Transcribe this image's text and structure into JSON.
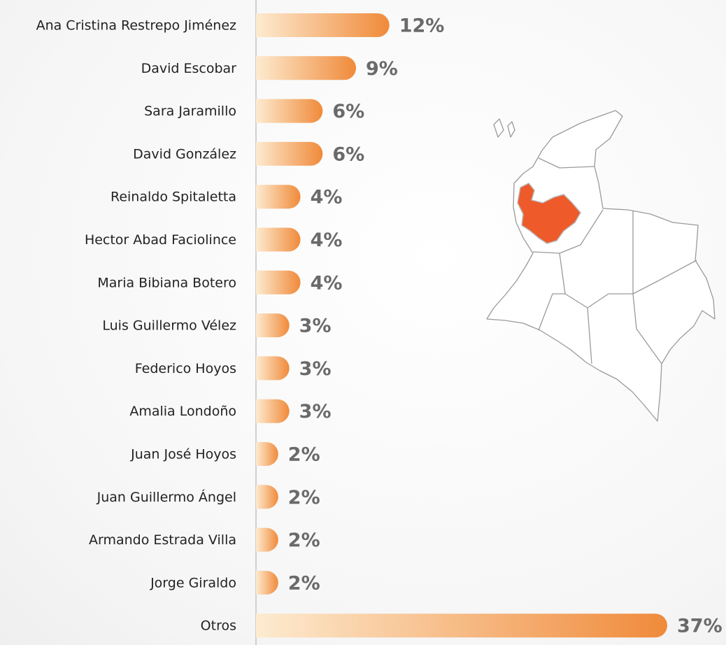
{
  "chart_data": {
    "type": "bar",
    "orientation": "horizontal",
    "categories": [
      "Ana Cristina Restrepo Jiménez",
      "David Escobar",
      "Sara Jaramillo",
      "David González",
      "Reinaldo Spitaletta",
      "Hector Abad Faciolince",
      "Maria Bibiana Botero",
      "Luis Guillermo Vélez",
      "Federico Hoyos",
      "Amalia Londoño",
      "Juan José Hoyos",
      "Juan Guillermo Ángel",
      "Armando Estrada Villa",
      "Jorge Giraldo",
      "Otros"
    ],
    "values": [
      12,
      9,
      6,
      6,
      4,
      4,
      4,
      3,
      3,
      3,
      2,
      2,
      2,
      2,
      37
    ],
    "value_labels": [
      "12%",
      "9%",
      "6%",
      "6%",
      "4%",
      "4%",
      "4%",
      "3%",
      "3%",
      "3%",
      "2%",
      "2%",
      "2%",
      "2%",
      "37%"
    ],
    "color": "#f08a3a"
  }
}
